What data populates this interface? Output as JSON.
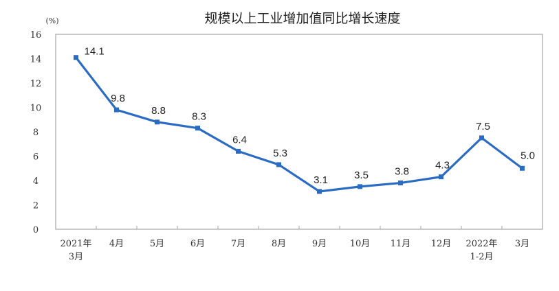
{
  "chart_data": {
    "type": "line",
    "title": "规模以上工业增加值同比增长速度",
    "ylabel": "(%)",
    "xlabel": "",
    "ylim": [
      0,
      16
    ],
    "yticks": [
      0,
      2,
      4,
      6,
      8,
      10,
      12,
      14,
      16
    ],
    "grid": false,
    "legend": null,
    "categories": [
      [
        "2021年",
        "3月"
      ],
      [
        "4月"
      ],
      [
        "5月"
      ],
      [
        "6月"
      ],
      [
        "7月"
      ],
      [
        "8月"
      ],
      [
        "9月"
      ],
      [
        "10月"
      ],
      [
        "11月"
      ],
      [
        "12月"
      ],
      [
        "2022年",
        "1-2月"
      ],
      [
        "3月"
      ]
    ],
    "series": [
      {
        "name": "规模以上工业增加值同比增长速度",
        "color": "#2A6BC4",
        "values": [
          14.1,
          9.8,
          8.8,
          8.3,
          6.4,
          5.3,
          3.1,
          3.5,
          3.8,
          4.3,
          7.5,
          5.0
        ],
        "labels": [
          "14.1",
          "9.8",
          "8.8",
          "8.3",
          "6.4",
          "5.3",
          "3.1",
          "3.5",
          "3.8",
          "4.3",
          "7.5",
          "5.0"
        ]
      }
    ]
  }
}
